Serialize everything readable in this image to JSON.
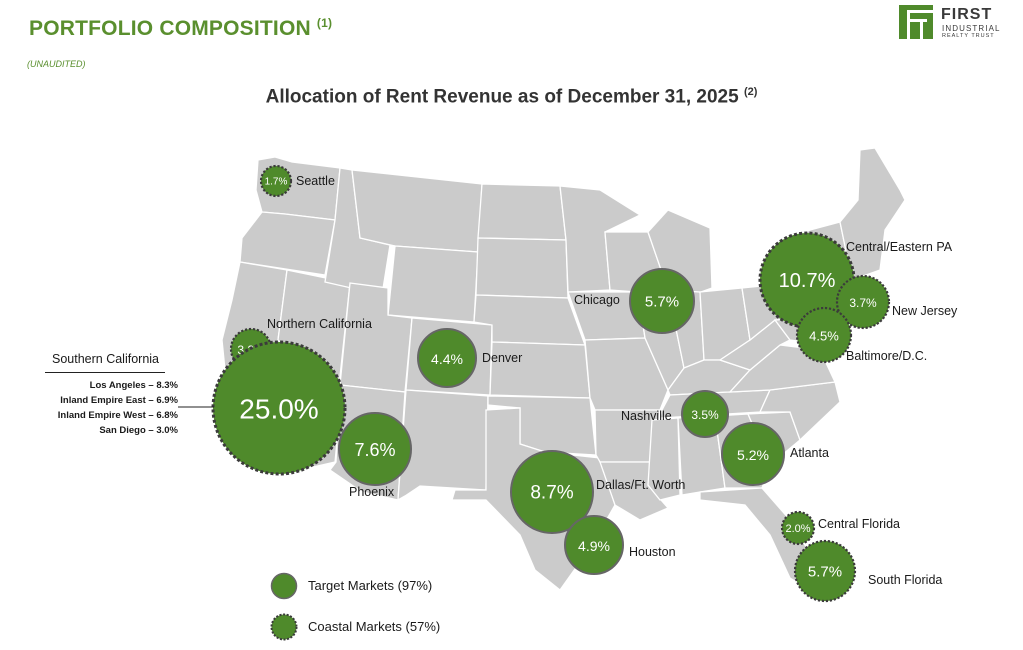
{
  "header": {
    "title": "PORTFOLIO COMPOSITION",
    "title_note": "(1)",
    "subtitle": "(UNAUDITED)",
    "chart_title": "Allocation of Rent Revenue as of December 31, 2025",
    "chart_title_note": "(2)"
  },
  "logo": {
    "line1": "FIRST",
    "line2": "INDUSTRIAL",
    "line3": "REALTY TRUST",
    "color": "#4f8a2b"
  },
  "colors": {
    "bubble_fill": "#4f8a2b",
    "target_outline": "#666666",
    "coastal_outline": "#3b3b3b",
    "land": "#cbcbcb",
    "title_green": "#5a8f2e"
  },
  "markets": [
    {
      "id": "seattle",
      "name": "Seattle",
      "value": "1.7%",
      "type": "coastal"
    },
    {
      "id": "northern-california",
      "name": "Northern California",
      "value": "3.2%",
      "type": "coastal"
    },
    {
      "id": "southern-california",
      "name": "Southern California",
      "value": "25.0%",
      "type": "coastal"
    },
    {
      "id": "phoenix",
      "name": "Phoenix",
      "value": "7.6%",
      "type": "target"
    },
    {
      "id": "denver",
      "name": "Denver",
      "value": "4.4%",
      "type": "target"
    },
    {
      "id": "dallas",
      "name": "Dallas/Ft. Worth",
      "value": "8.7%",
      "type": "target"
    },
    {
      "id": "houston",
      "name": "Houston",
      "value": "4.9%",
      "type": "target"
    },
    {
      "id": "chicago",
      "name": "Chicago",
      "value": "5.7%",
      "type": "target"
    },
    {
      "id": "nashville",
      "name": "Nashville",
      "value": "3.5%",
      "type": "target"
    },
    {
      "id": "atlanta",
      "name": "Atlanta",
      "value": "5.2%",
      "type": "target"
    },
    {
      "id": "central-eastern-pa",
      "name": "Central/Eastern PA",
      "value": "10.7%",
      "type": "coastal"
    },
    {
      "id": "new-jersey",
      "name": "New Jersey",
      "value": "3.7%",
      "type": "coastal"
    },
    {
      "id": "baltimore-dc",
      "name": "Baltimore/D.C.",
      "value": "4.5%",
      "type": "coastal"
    },
    {
      "id": "central-florida",
      "name": "Central Florida",
      "value": "2.0%",
      "type": "coastal"
    },
    {
      "id": "south-florida",
      "name": "South Florida",
      "value": "5.7%",
      "type": "coastal"
    }
  ],
  "southern_california_breakdown": {
    "heading": "Southern California",
    "items": [
      "Los Angeles – 8.3%",
      "Inland Empire East – 6.9%",
      "Inland Empire West – 6.8%",
      "San Diego – 3.0%"
    ]
  },
  "legend": {
    "target": "Target Markets (97%)",
    "coastal": "Coastal Markets (57%)"
  }
}
